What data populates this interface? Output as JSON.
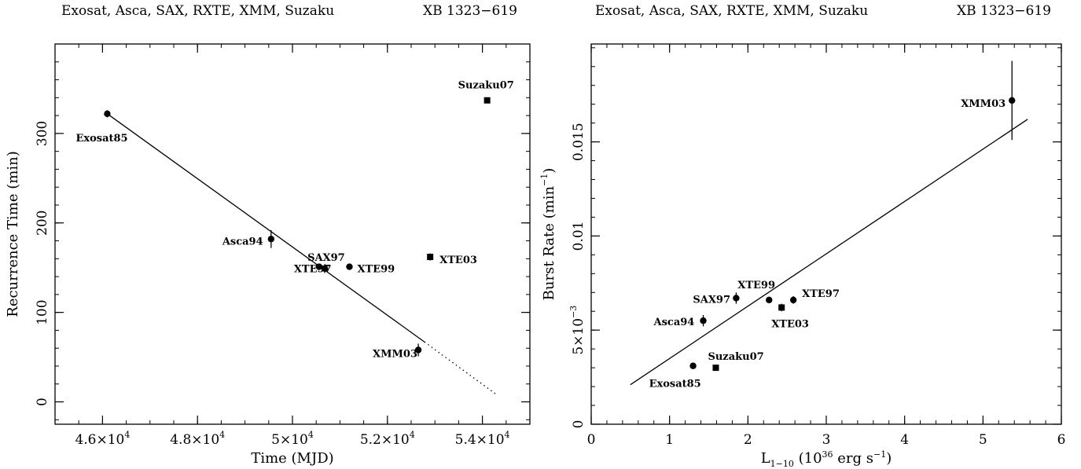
{
  "left_header": {
    "instruments": "Exosat, Asca, SAX, RXTE, XMM, Suzaku",
    "source": "XB 1323−619"
  },
  "right_header": {
    "instruments": "Exosat, Asca, SAX, RXTE, XMM, Suzaku",
    "source": "XB 1323−619"
  },
  "chart_data": [
    {
      "type": "scatter",
      "title": "",
      "xlabel": "Time (MJD)",
      "ylabel": "Recurrence Time (min)",
      "xlim": [
        45000,
        55000
      ],
      "ylim": [
        -25,
        400
      ],
      "x_ticks": [
        {
          "value": 46000,
          "mant": "4.6",
          "exp": "4"
        },
        {
          "value": 48000,
          "mant": "4.8",
          "exp": "4"
        },
        {
          "value": 50000,
          "mant": "5",
          "exp": "4"
        },
        {
          "value": 52000,
          "mant": "5.2",
          "exp": "4"
        },
        {
          "value": 54000,
          "mant": "5.4",
          "exp": "4"
        }
      ],
      "y_ticks": [
        {
          "value": 0,
          "label": "0"
        },
        {
          "value": 100,
          "label": "100"
        },
        {
          "value": 200,
          "label": "200"
        },
        {
          "value": 300,
          "label": "300"
        }
      ],
      "points": [
        {
          "label": "Exosat85",
          "x": 46100,
          "y": 322,
          "err": 4,
          "marker": "circle"
        },
        {
          "label": "Asca94",
          "x": 49550,
          "y": 182,
          "err": 10,
          "marker": "circle"
        },
        {
          "label": "XTE97",
          "x": 50560,
          "y": 151,
          "err": 3,
          "marker": "circle"
        },
        {
          "label": "SAX97",
          "x": 50680,
          "y": 149,
          "err": 5,
          "marker": "circle"
        },
        {
          "label": "XTE99",
          "x": 51200,
          "y": 151,
          "err": 2,
          "marker": "circle"
        },
        {
          "label": "XTE03",
          "x": 52900,
          "y": 162,
          "err": 4,
          "marker": "square"
        },
        {
          "label": "XMM03",
          "x": 52650,
          "y": 58,
          "err": 7,
          "marker": "circle"
        },
        {
          "label": "Suzaku07",
          "x": 54100,
          "y": 337,
          "err": 0,
          "marker": "square"
        }
      ],
      "fit_line": {
        "x": [
          46100,
          52780
        ],
        "y": [
          322,
          67
        ]
      },
      "fit_extrapolation": {
        "x": [
          52780,
          54300
        ],
        "y": [
          67,
          8
        ]
      }
    },
    {
      "type": "scatter",
      "title": "",
      "xlabel": "L1−10 (10^36 erg s^−1)",
      "ylabel": "Burst Rate (min^−1)",
      "xlim": [
        0,
        6
      ],
      "ylim": [
        0,
        0.0202
      ],
      "x_ticks": [
        {
          "value": 0,
          "label": "0"
        },
        {
          "value": 1,
          "label": "1"
        },
        {
          "value": 2,
          "label": "2"
        },
        {
          "value": 3,
          "label": "3"
        },
        {
          "value": 4,
          "label": "4"
        },
        {
          "value": 5,
          "label": "5"
        },
        {
          "value": 6,
          "label": "6"
        }
      ],
      "y_ticks": [
        {
          "value": 0,
          "label": "0"
        },
        {
          "value": 0.005,
          "label": "5×10−3"
        },
        {
          "value": 0.01,
          "label": "0.01"
        },
        {
          "value": 0.015,
          "label": "0.015"
        }
      ],
      "points": [
        {
          "label": "Exosat85",
          "x": 1.3,
          "y": 0.0031,
          "err": 0,
          "marker": "circle"
        },
        {
          "label": "Suzaku07",
          "x": 1.59,
          "y": 0.003,
          "err": 0,
          "marker": "square"
        },
        {
          "label": "Asca94",
          "x": 1.43,
          "y": 0.0055,
          "err": 0.0003,
          "marker": "circle"
        },
        {
          "label": "SAX97",
          "x": 1.85,
          "y": 0.0067,
          "err": 0.0003,
          "marker": "circle"
        },
        {
          "label": "XTE99",
          "x": 2.27,
          "y": 0.0066,
          "err": 0.0001,
          "marker": "circle"
        },
        {
          "label": "XTE03",
          "x": 2.43,
          "y": 0.0062,
          "err": 0.0002,
          "marker": "square"
        },
        {
          "label": "XTE97",
          "x": 2.58,
          "y": 0.0066,
          "err": 0.0002,
          "marker": "circle"
        },
        {
          "label": "XMM03",
          "x": 5.37,
          "y": 0.0172,
          "err": 0.0021,
          "marker": "circle"
        }
      ],
      "fit_line": {
        "x": [
          0.5,
          5.57
        ],
        "y": [
          0.0021,
          0.0162
        ]
      }
    }
  ]
}
